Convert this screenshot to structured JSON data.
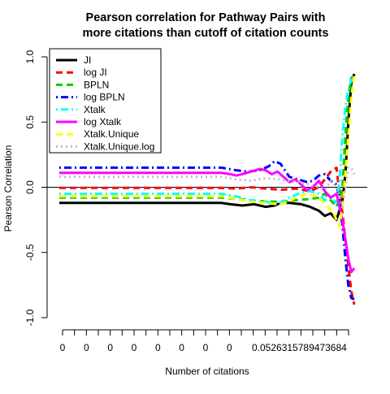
{
  "chart_data": {
    "type": "line",
    "title_line1": "Pearson correlation for Pathway Pairs with",
    "title_line2": "more citations than cutoff of citation counts",
    "xlabel": "Number of citations",
    "ylabel": "Pearson Correlation",
    "ylim": [
      -1.0,
      1.0
    ],
    "xlim": [
      0,
      1
    ],
    "y_ticks": [
      -1.0,
      -0.5,
      0.0,
      0.5,
      1.0
    ],
    "y_tick_labels": [
      "-1.0",
      "-0.5",
      "0.0",
      "0.5",
      "1.0"
    ],
    "x_tick_labels": [
      "0",
      "0",
      "0",
      "0",
      "0",
      "0",
      "0",
      "0",
      "0.0526315789473684"
    ],
    "x_tick_count": 25,
    "zero_line": true,
    "legend_position": "top-left",
    "series": [
      {
        "name": "JI",
        "color": "#000000",
        "dash": "solid",
        "points": [
          [
            0.0,
            -0.12
          ],
          [
            0.55,
            -0.12
          ],
          [
            0.58,
            -0.13
          ],
          [
            0.62,
            -0.14
          ],
          [
            0.66,
            -0.13
          ],
          [
            0.7,
            -0.15
          ],
          [
            0.73,
            -0.14
          ],
          [
            0.75,
            -0.12
          ],
          [
            0.78,
            -0.12
          ],
          [
            0.82,
            -0.13
          ],
          [
            0.85,
            -0.15
          ],
          [
            0.88,
            -0.18
          ],
          [
            0.9,
            -0.22
          ],
          [
            0.92,
            -0.2
          ],
          [
            0.94,
            -0.25
          ],
          [
            0.96,
            -0.1
          ],
          [
            0.97,
            0.1
          ],
          [
            0.98,
            0.5
          ],
          [
            0.99,
            0.8
          ],
          [
            1.0,
            0.87
          ]
        ]
      },
      {
        "name": "log JI",
        "color": "#ff0000",
        "dash": "dashed",
        "points": [
          [
            0.0,
            -0.005
          ],
          [
            0.55,
            -0.005
          ],
          [
            0.6,
            -0.01
          ],
          [
            0.65,
            0.0
          ],
          [
            0.7,
            -0.01
          ],
          [
            0.75,
            -0.02
          ],
          [
            0.8,
            -0.01
          ],
          [
            0.85,
            -0.03
          ],
          [
            0.88,
            0.0
          ],
          [
            0.9,
            0.06
          ],
          [
            0.92,
            0.12
          ],
          [
            0.94,
            0.15
          ],
          [
            0.95,
            -0.05
          ],
          [
            0.96,
            -0.2
          ],
          [
            0.97,
            -0.4
          ],
          [
            0.98,
            -0.6
          ],
          [
            0.99,
            -0.8
          ],
          [
            1.0,
            -0.9
          ]
        ]
      },
      {
        "name": "BPLN",
        "color": "#00cc00",
        "dash": "dashed",
        "points": [
          [
            0.0,
            -0.08
          ],
          [
            0.55,
            -0.08
          ],
          [
            0.6,
            -0.09
          ],
          [
            0.65,
            -0.1
          ],
          [
            0.7,
            -0.11
          ],
          [
            0.75,
            -0.11
          ],
          [
            0.8,
            -0.1
          ],
          [
            0.85,
            -0.09
          ],
          [
            0.88,
            -0.08
          ],
          [
            0.9,
            -0.05
          ],
          [
            0.92,
            -0.1
          ],
          [
            0.94,
            -0.15
          ],
          [
            0.96,
            0.0
          ],
          [
            0.97,
            0.4
          ],
          [
            0.98,
            0.7
          ],
          [
            0.99,
            0.84
          ],
          [
            1.0,
            0.85
          ]
        ]
      },
      {
        "name": "log BPLN",
        "color": "#0000ff",
        "dash": "dotdash",
        "points": [
          [
            0.0,
            0.15
          ],
          [
            0.55,
            0.15
          ],
          [
            0.6,
            0.13
          ],
          [
            0.64,
            0.12
          ],
          [
            0.68,
            0.13
          ],
          [
            0.71,
            0.16
          ],
          [
            0.73,
            0.2
          ],
          [
            0.75,
            0.18
          ],
          [
            0.78,
            0.08
          ],
          [
            0.81,
            0.06
          ],
          [
            0.84,
            0.04
          ],
          [
            0.86,
            0.05
          ],
          [
            0.88,
            0.09
          ],
          [
            0.9,
            0.1
          ],
          [
            0.92,
            0.05
          ],
          [
            0.94,
            0.02
          ],
          [
            0.95,
            -0.1
          ],
          [
            0.96,
            -0.3
          ],
          [
            0.97,
            -0.55
          ],
          [
            0.98,
            -0.75
          ],
          [
            0.99,
            -0.85
          ],
          [
            1.0,
            -0.86
          ]
        ]
      },
      {
        "name": "Xtalk",
        "color": "#00ffff",
        "dash": "dotdash",
        "points": [
          [
            0.0,
            -0.05
          ],
          [
            0.55,
            -0.05
          ],
          [
            0.6,
            -0.07
          ],
          [
            0.65,
            -0.1
          ],
          [
            0.7,
            -0.11
          ],
          [
            0.73,
            -0.13
          ],
          [
            0.75,
            -0.12
          ],
          [
            0.78,
            -0.08
          ],
          [
            0.82,
            -0.04
          ],
          [
            0.85,
            -0.03
          ],
          [
            0.88,
            -0.05
          ],
          [
            0.9,
            -0.1
          ],
          [
            0.92,
            -0.08
          ],
          [
            0.94,
            -0.12
          ],
          [
            0.95,
            0.05
          ],
          [
            0.96,
            0.4
          ],
          [
            0.97,
            0.62
          ],
          [
            0.98,
            0.75
          ],
          [
            0.99,
            0.82
          ],
          [
            1.0,
            0.85
          ]
        ]
      },
      {
        "name": "log Xtalk",
        "color": "#ff00ff",
        "dash": "solid",
        "points": [
          [
            0.0,
            0.11
          ],
          [
            0.55,
            0.11
          ],
          [
            0.58,
            0.1
          ],
          [
            0.6,
            0.09
          ],
          [
            0.62,
            0.1
          ],
          [
            0.65,
            0.12
          ],
          [
            0.68,
            0.14
          ],
          [
            0.7,
            0.13
          ],
          [
            0.72,
            0.1
          ],
          [
            0.74,
            0.12
          ],
          [
            0.76,
            0.08
          ],
          [
            0.78,
            0.04
          ],
          [
            0.8,
            0.06
          ],
          [
            0.82,
            0.02
          ],
          [
            0.84,
            -0.02
          ],
          [
            0.86,
            0.0
          ],
          [
            0.88,
            0.05
          ],
          [
            0.9,
            -0.03
          ],
          [
            0.92,
            -0.08
          ],
          [
            0.94,
            -0.05
          ],
          [
            0.95,
            -0.15
          ],
          [
            0.96,
            -0.25
          ],
          [
            0.97,
            -0.4
          ],
          [
            0.98,
            -0.55
          ],
          [
            0.99,
            -0.65
          ],
          [
            1.0,
            -0.62
          ]
        ]
      },
      {
        "name": "Xtalk.Unique",
        "color": "#ffff00",
        "dash": "dashed",
        "points": [
          [
            0.0,
            -0.07
          ],
          [
            0.55,
            -0.07
          ],
          [
            0.6,
            -0.09
          ],
          [
            0.65,
            -0.11
          ],
          [
            0.7,
            -0.12
          ],
          [
            0.75,
            -0.13
          ],
          [
            0.78,
            -0.11
          ],
          [
            0.8,
            -0.08
          ],
          [
            0.84,
            -0.05
          ],
          [
            0.87,
            -0.07
          ],
          [
            0.89,
            -0.1
          ],
          [
            0.91,
            -0.15
          ],
          [
            0.93,
            -0.2
          ],
          [
            0.95,
            -0.3
          ],
          [
            0.96,
            -0.15
          ],
          [
            0.97,
            0.1
          ],
          [
            0.98,
            0.4
          ],
          [
            0.99,
            0.7
          ],
          [
            1.0,
            0.85
          ]
        ]
      },
      {
        "name": "Xtalk.Unique.log",
        "color": "#bebebe",
        "dash": "dotted",
        "points": [
          [
            0.0,
            0.08
          ],
          [
            0.55,
            0.08
          ],
          [
            0.6,
            0.06
          ],
          [
            0.65,
            0.05
          ],
          [
            0.7,
            0.07
          ],
          [
            0.75,
            0.06
          ],
          [
            0.8,
            0.04
          ],
          [
            0.85,
            0.02
          ],
          [
            0.88,
            0.0
          ],
          [
            0.9,
            -0.02
          ],
          [
            0.92,
            0.05
          ],
          [
            0.94,
            0.0
          ],
          [
            0.96,
            -0.15
          ],
          [
            0.97,
            0.0
          ],
          [
            0.98,
            0.15
          ],
          [
            0.99,
            0.15
          ],
          [
            1.0,
            0.1
          ]
        ]
      }
    ]
  }
}
